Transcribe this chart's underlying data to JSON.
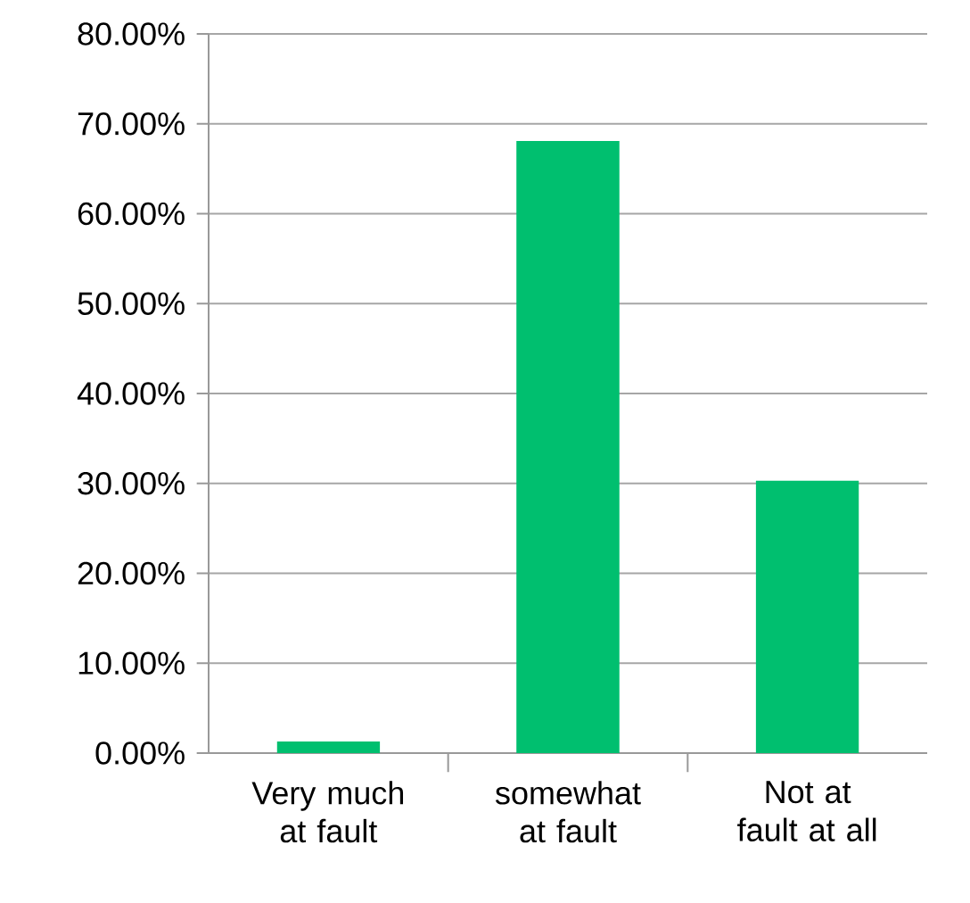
{
  "chart_data": {
    "type": "bar",
    "categories": [
      "Very much at fault",
      "somewhat at fault",
      "Not at fault at all"
    ],
    "values": [
      1.3,
      68.1,
      30.3
    ],
    "color": "#00bf6f",
    "ylim": [
      0,
      80
    ],
    "yticks": [
      {
        "value": 0,
        "label": "0.00%"
      },
      {
        "value": 10,
        "label": "10.00%"
      },
      {
        "value": 20,
        "label": "20.00%"
      },
      {
        "value": 30,
        "label": "30.00%"
      },
      {
        "value": 40,
        "label": "40.00%"
      },
      {
        "value": 50,
        "label": "50.00%"
      },
      {
        "value": 60,
        "label": "60.00%"
      },
      {
        "value": 70,
        "label": "70.00%"
      },
      {
        "value": 80,
        "label": "80.00%"
      }
    ],
    "grid": "y"
  }
}
